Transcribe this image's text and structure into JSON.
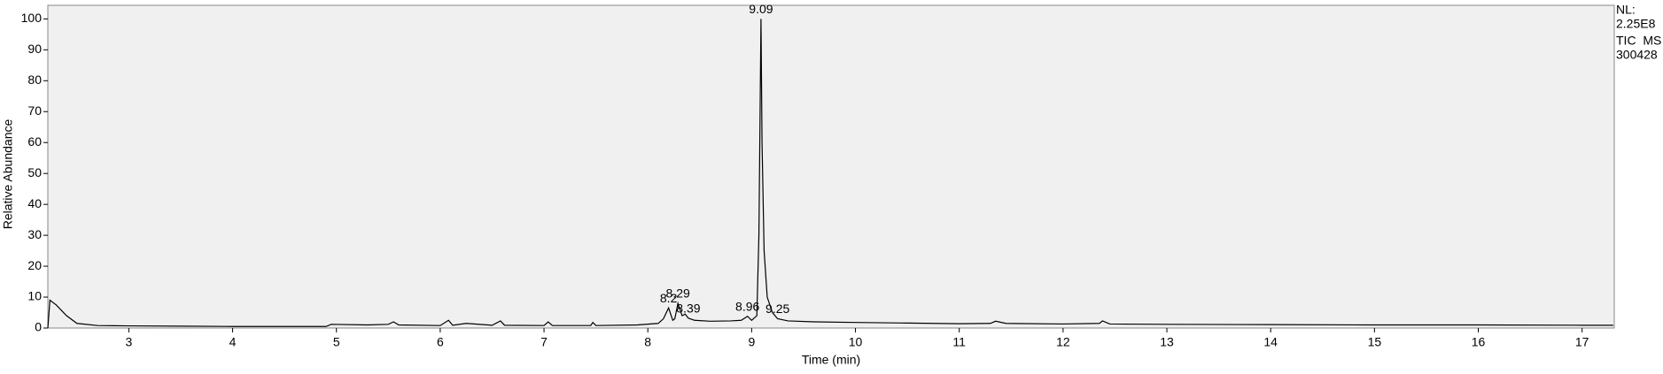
{
  "chart_data": {
    "type": "line",
    "x_label": "Time (min)",
    "y_label": "Relative Abundance",
    "nl_label": "NL:",
    "nl_value": "2.25E8",
    "scan": "TIC  MS",
    "file": "300428",
    "color": "#000000",
    "x": [
      2.22,
      2.24,
      2.3,
      2.4,
      2.5,
      2.7,
      3.0,
      3.5,
      4.0,
      4.5,
      4.9,
      4.95,
      5.3,
      5.5,
      5.55,
      5.6,
      6.0,
      6.08,
      6.12,
      6.25,
      6.5,
      6.58,
      6.62,
      7.0,
      7.04,
      7.08,
      7.45,
      7.47,
      7.5,
      7.9,
      8.1,
      8.15,
      8.2,
      8.24,
      8.26,
      8.29,
      8.33,
      8.36,
      8.39,
      8.45,
      8.6,
      8.8,
      8.9,
      8.96,
      9.0,
      9.05,
      9.07,
      9.09,
      9.1,
      9.12,
      9.15,
      9.2,
      9.25,
      9.35,
      9.6,
      10,
      10.5,
      11,
      11.3,
      11.35,
      11.45,
      12,
      12.35,
      12.38,
      12.45,
      13,
      14,
      15,
      16,
      17,
      17.3
    ],
    "values": [
      0,
      9,
      7.5,
      4,
      1.5,
      0.8,
      0.7,
      0.6,
      0.5,
      0.5,
      0.5,
      1.2,
      1.0,
      1.2,
      2,
      1,
      0.8,
      2.5,
      0.9,
      1.5,
      0.9,
      2.3,
      0.9,
      0.8,
      2,
      0.8,
      0.8,
      1.8,
      0.8,
      1.0,
      1.5,
      3,
      6.5,
      2.5,
      3,
      8,
      4,
      4.5,
      3.2,
      2.5,
      2.2,
      2.3,
      2.5,
      3.8,
      2.5,
      4,
      30,
      100,
      60,
      25,
      10,
      5,
      3,
      2.3,
      2,
      1.8,
      1.6,
      1.4,
      1.5,
      2.2,
      1.5,
      1.3,
      1.5,
      2.3,
      1.3,
      1.2,
      1.1,
      1.0,
      1.0,
      0.9,
      0.9
    ],
    "peak_labels": [
      {
        "x": 8.2,
        "y": 6.5
      },
      {
        "x": 8.29,
        "y": 8
      },
      {
        "x": 8.39,
        "y": 3.2
      },
      {
        "x": 8.96,
        "y": 3.8
      },
      {
        "x": 9.09,
        "y": 100
      },
      {
        "x": 9.25,
        "y": 3
      }
    ],
    "xlim": [
      2.22,
      17.31
    ],
    "ylim": [
      0,
      104.4
    ],
    "xticks": [
      3,
      4,
      5,
      6,
      7,
      8,
      9,
      10,
      11,
      12,
      13,
      14,
      15,
      16,
      17
    ],
    "yticks": [
      0,
      10,
      20,
      30,
      40,
      50,
      60,
      70,
      80,
      90,
      100
    ]
  }
}
